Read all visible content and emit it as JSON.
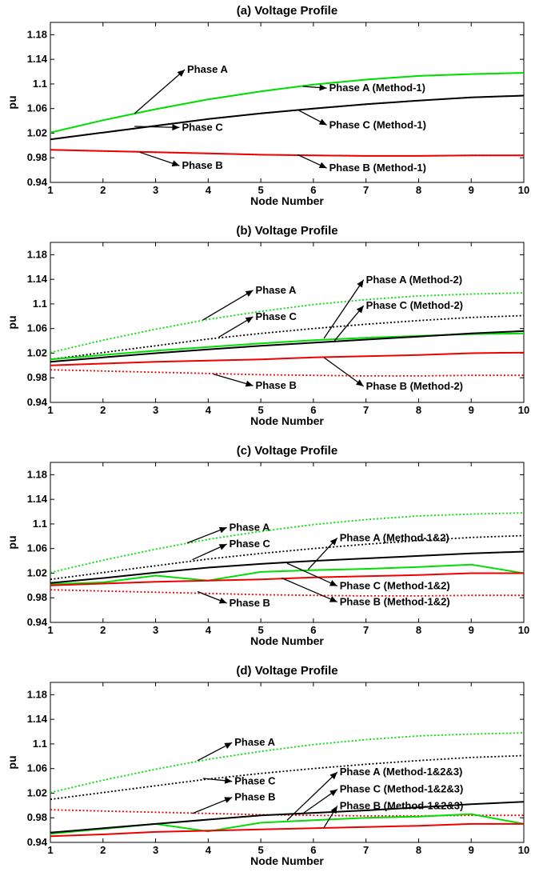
{
  "chart_data": [
    {
      "type": "line",
      "title": "(a) Voltage Profile",
      "xlabel": "Node Number",
      "ylabel": "pu",
      "xlim": [
        1,
        10
      ],
      "ylim": [
        0.94,
        1.2
      ],
      "xticks": [
        "1",
        "2",
        "3",
        "4",
        "5",
        "6",
        "7",
        "8",
        "9",
        "10"
      ],
      "yticks": [
        "0.94",
        "0.98",
        "1.02",
        "1.06",
        "1.1",
        "1.14",
        "1.18"
      ],
      "x": [
        1,
        2,
        3,
        4,
        5,
        6,
        7,
        8,
        9,
        10
      ],
      "grid": false,
      "series": [
        {
          "name": "Phase A",
          "color": "#00dd00",
          "dash": "dotted",
          "values": [
            1.021,
            1.041,
            1.059,
            1.075,
            1.088,
            1.099,
            1.107,
            1.113,
            1.116,
            1.118
          ]
        },
        {
          "name": "Phase B",
          "color": "#ee0000",
          "dash": "dotted",
          "values": [
            0.993,
            0.991,
            0.989,
            0.987,
            0.985,
            0.984,
            0.983,
            0.983,
            0.984,
            0.984
          ]
        },
        {
          "name": "Phase C",
          "color": "#000000",
          "dash": "dotted",
          "values": [
            1.01,
            1.021,
            1.032,
            1.043,
            1.052,
            1.06,
            1.067,
            1.073,
            1.078,
            1.081
          ]
        },
        {
          "name": "Phase A (Method-1)",
          "color": "#00dd00",
          "dash": "solid",
          "values": [
            1.021,
            1.041,
            1.059,
            1.075,
            1.088,
            1.099,
            1.107,
            1.113,
            1.116,
            1.118
          ]
        },
        {
          "name": "Phase B (Method-1)",
          "color": "#ee0000",
          "dash": "solid",
          "values": [
            0.993,
            0.991,
            0.989,
            0.987,
            0.985,
            0.984,
            0.983,
            0.983,
            0.984,
            0.984
          ]
        },
        {
          "name": "Phase C (Method-1)",
          "color": "#000000",
          "dash": "solid",
          "values": [
            1.01,
            1.021,
            1.032,
            1.043,
            1.052,
            1.06,
            1.067,
            1.073,
            1.078,
            1.081
          ]
        }
      ],
      "annotations": [
        {
          "text": "Phase A",
          "x": 3.6,
          "y": 1.118,
          "ax": 2.6,
          "ay": 1.052
        },
        {
          "text": "Phase C",
          "x": 3.5,
          "y": 1.024,
          "ax": 2.6,
          "ay": 1.031
        },
        {
          "text": "Phase B",
          "x": 3.5,
          "y": 0.962,
          "ax": 2.7,
          "ay": 0.989
        },
        {
          "text": "Phase A (Method-1)",
          "x": 6.3,
          "y": 1.088,
          "ax": 5.8,
          "ay": 1.096
        },
        {
          "text": "Phase C (Method-1)",
          "x": 6.3,
          "y": 1.028,
          "ax": 5.7,
          "ay": 1.058
        },
        {
          "text": "Phase B (Method-1)",
          "x": 6.3,
          "y": 0.958,
          "ax": 5.7,
          "ay": 0.985
        }
      ]
    },
    {
      "type": "line",
      "title": "(b) Voltage Profile",
      "xlabel": "Node Number",
      "ylabel": "pu",
      "xlim": [
        1,
        10
      ],
      "ylim": [
        0.94,
        1.2
      ],
      "xticks": [
        "1",
        "2",
        "3",
        "4",
        "5",
        "6",
        "7",
        "8",
        "9",
        "10"
      ],
      "yticks": [
        "0.94",
        "0.98",
        "1.02",
        "1.06",
        "1.1",
        "1.14",
        "1.18"
      ],
      "x": [
        1,
        2,
        3,
        4,
        5,
        6,
        7,
        8,
        9,
        10
      ],
      "grid": false,
      "series": [
        {
          "name": "Phase A",
          "color": "#00dd00",
          "dash": "dotted",
          "values": [
            1.021,
            1.041,
            1.059,
            1.075,
            1.088,
            1.099,
            1.107,
            1.113,
            1.116,
            1.118
          ]
        },
        {
          "name": "Phase B",
          "color": "#ee0000",
          "dash": "dotted",
          "values": [
            0.993,
            0.991,
            0.989,
            0.987,
            0.985,
            0.984,
            0.983,
            0.983,
            0.984,
            0.984
          ]
        },
        {
          "name": "Phase C",
          "color": "#000000",
          "dash": "dotted",
          "values": [
            1.01,
            1.021,
            1.032,
            1.043,
            1.052,
            1.06,
            1.067,
            1.073,
            1.078,
            1.081
          ]
        },
        {
          "name": "Phase A (Method-2)",
          "color": "#00dd00",
          "dash": "solid",
          "values": [
            1.01,
            1.017,
            1.024,
            1.03,
            1.036,
            1.041,
            1.045,
            1.048,
            1.051,
            1.052
          ]
        },
        {
          "name": "Phase B (Method-2)",
          "color": "#ee0000",
          "dash": "solid",
          "values": [
            1.0,
            1.003,
            1.006,
            1.008,
            1.01,
            1.013,
            1.015,
            1.017,
            1.02,
            1.021
          ]
        },
        {
          "name": "Phase C (Method-2)",
          "color": "#000000",
          "dash": "solid",
          "values": [
            1.006,
            1.013,
            1.02,
            1.026,
            1.032,
            1.037,
            1.042,
            1.047,
            1.052,
            1.056
          ]
        }
      ],
      "annotations": [
        {
          "text": "Phase A",
          "x": 4.9,
          "y": 1.117,
          "ax": 3.9,
          "ay": 1.074
        },
        {
          "text": "Phase C",
          "x": 4.9,
          "y": 1.074,
          "ax": 4.2,
          "ay": 1.046
        },
        {
          "text": "Phase B",
          "x": 4.9,
          "y": 0.962,
          "ax": 4.1,
          "ay": 0.986
        },
        {
          "text": "Phase A (Method-2)",
          "x": 7.0,
          "y": 1.134,
          "ax": 6.2,
          "ay": 1.044
        },
        {
          "text": "Phase C (Method-2)",
          "x": 7.0,
          "y": 1.092,
          "ax": 6.4,
          "ay": 1.04
        },
        {
          "text": "Phase B (Method-2)",
          "x": 7.0,
          "y": 0.961,
          "ax": 6.2,
          "ay": 1.013
        }
      ]
    },
    {
      "type": "line",
      "title": "(c) Voltage Profile",
      "xlabel": "Node Number",
      "ylabel": "pu",
      "xlim": [
        1,
        10
      ],
      "ylim": [
        0.94,
        1.2
      ],
      "xticks": [
        "1",
        "2",
        "3",
        "4",
        "5",
        "6",
        "7",
        "8",
        "9",
        "10"
      ],
      "yticks": [
        "0.94",
        "0.98",
        "1.02",
        "1.06",
        "1.1",
        "1.14",
        "1.18"
      ],
      "x": [
        1,
        2,
        3,
        4,
        5,
        6,
        7,
        8,
        9,
        10
      ],
      "grid": false,
      "series": [
        {
          "name": "Phase A",
          "color": "#00dd00",
          "dash": "dotted",
          "values": [
            1.021,
            1.041,
            1.059,
            1.075,
            1.088,
            1.099,
            1.107,
            1.113,
            1.116,
            1.118
          ]
        },
        {
          "name": "Phase B",
          "color": "#ee0000",
          "dash": "dotted",
          "values": [
            0.993,
            0.991,
            0.989,
            0.987,
            0.985,
            0.984,
            0.983,
            0.983,
            0.984,
            0.984
          ]
        },
        {
          "name": "Phase C",
          "color": "#000000",
          "dash": "dotted",
          "values": [
            1.01,
            1.021,
            1.032,
            1.043,
            1.052,
            1.06,
            1.067,
            1.073,
            1.078,
            1.081
          ]
        },
        {
          "name": "Phase A (Method-1&2)",
          "color": "#00dd00",
          "dash": "solid",
          "values": [
            1.002,
            1.005,
            1.016,
            1.008,
            1.022,
            1.025,
            1.027,
            1.03,
            1.034,
            1.02
          ]
        },
        {
          "name": "Phase B (Method-1&2)",
          "color": "#ee0000",
          "dash": "solid",
          "values": [
            1.0,
            1.003,
            1.006,
            1.008,
            1.01,
            1.013,
            1.015,
            1.017,
            1.02,
            1.02
          ]
        },
        {
          "name": "Phase C (Method-1&2)",
          "color": "#000000",
          "dash": "solid",
          "values": [
            1.004,
            1.012,
            1.021,
            1.029,
            1.035,
            1.04,
            1.044,
            1.048,
            1.052,
            1.055
          ]
        }
      ],
      "annotations": [
        {
          "text": "Phase A",
          "x": 4.4,
          "y": 1.089,
          "ax": 3.6,
          "ay": 1.069
        },
        {
          "text": "Phase C",
          "x": 4.4,
          "y": 1.062,
          "ax": 3.7,
          "ay": 1.042
        },
        {
          "text": "Phase B",
          "x": 4.4,
          "y": 0.966,
          "ax": 3.8,
          "ay": 0.99
        },
        {
          "text": "Phase A (Method-1&2)",
          "x": 6.5,
          "y": 1.072,
          "ax": 5.9,
          "ay": 1.026
        },
        {
          "text": "Phase C (Method-1&2)",
          "x": 6.5,
          "y": 0.994,
          "ax": 5.5,
          "ay": 1.036
        },
        {
          "text": "Phase B (Method-1&2)",
          "x": 6.5,
          "y": 0.968,
          "ax": 5.4,
          "ay": 1.012
        }
      ]
    },
    {
      "type": "line",
      "title": "(d) Voltage Profile",
      "xlabel": "Node Number",
      "ylabel": "pu",
      "xlim": [
        1,
        10
      ],
      "ylim": [
        0.94,
        1.2
      ],
      "xticks": [
        "1",
        "2",
        "3",
        "4",
        "5",
        "6",
        "7",
        "8",
        "9",
        "10"
      ],
      "yticks": [
        "0.94",
        "0.98",
        "1.02",
        "1.06",
        "1.1",
        "1.14",
        "1.18"
      ],
      "x": [
        1,
        2,
        3,
        4,
        5,
        6,
        7,
        8,
        9,
        10
      ],
      "grid": false,
      "series": [
        {
          "name": "Phase A",
          "color": "#00dd00",
          "dash": "dotted",
          "values": [
            1.021,
            1.041,
            1.059,
            1.075,
            1.088,
            1.099,
            1.107,
            1.113,
            1.116,
            1.118
          ]
        },
        {
          "name": "Phase B",
          "color": "#ee0000",
          "dash": "dotted",
          "values": [
            0.993,
            0.991,
            0.989,
            0.987,
            0.985,
            0.984,
            0.983,
            0.983,
            0.984,
            0.984
          ]
        },
        {
          "name": "Phase C",
          "color": "#000000",
          "dash": "dotted",
          "values": [
            1.01,
            1.021,
            1.032,
            1.043,
            1.052,
            1.06,
            1.067,
            1.073,
            1.078,
            1.081
          ]
        },
        {
          "name": "Phase A (Method-1&2&3)",
          "color": "#00dd00",
          "dash": "solid",
          "values": [
            0.954,
            0.962,
            0.97,
            0.958,
            0.972,
            0.976,
            0.98,
            0.982,
            0.986,
            0.97
          ]
        },
        {
          "name": "Phase B (Method-1&2&3)",
          "color": "#ee0000",
          "dash": "solid",
          "values": [
            0.95,
            0.953,
            0.957,
            0.959,
            0.961,
            0.963,
            0.965,
            0.967,
            0.97,
            0.97
          ]
        },
        {
          "name": "Phase C (Method-1&2&3)",
          "color": "#000000",
          "dash": "solid",
          "values": [
            0.956,
            0.963,
            0.97,
            0.977,
            0.984,
            0.988,
            0.992,
            0.997,
            1.002,
            1.006
          ]
        }
      ],
      "annotations": [
        {
          "text": "Phase A",
          "x": 4.5,
          "y": 1.097,
          "ax": 3.8,
          "ay": 1.073
        },
        {
          "text": "Phase C",
          "x": 4.5,
          "y": 1.034,
          "ax": 3.9,
          "ay": 1.044
        },
        {
          "text": "Phase B",
          "x": 4.5,
          "y": 1.008,
          "ax": 3.7,
          "ay": 0.987
        },
        {
          "text": "Phase A (Method-1&2&3)",
          "x": 6.5,
          "y": 1.049,
          "ax": 5.5,
          "ay": 0.976
        },
        {
          "text": "Phase C (Method-1&2&3)",
          "x": 6.5,
          "y": 1.021,
          "ax": 5.8,
          "ay": 0.987
        },
        {
          "text": "Phase B (Method-1&2&3)",
          "x": 6.5,
          "y": 0.994,
          "ax": 6.2,
          "ay": 0.964
        }
      ]
    }
  ]
}
